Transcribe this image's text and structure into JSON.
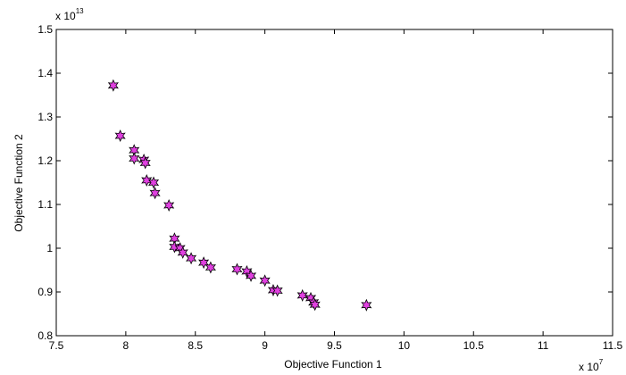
{
  "chart_data": {
    "type": "scatter",
    "title": "",
    "xlabel": "Objective Function 1",
    "ylabel": "Objective Function 2",
    "x_multiplier": {
      "base": "x 10",
      "exponent": "7"
    },
    "y_multiplier": {
      "base": "x 10",
      "exponent": "13"
    },
    "xlim": [
      7.5,
      11.5
    ],
    "ylim": [
      0.8,
      1.5
    ],
    "x_ticks": [
      "7.5",
      "8",
      "8.5",
      "9",
      "9.5",
      "10",
      "10.5",
      "11",
      "11.5"
    ],
    "y_ticks": [
      "0.8",
      "0.9",
      "1",
      "1.1",
      "1.2",
      "1.3",
      "1.4",
      "1.5"
    ],
    "grid": false,
    "marker": "hexagram",
    "colors": {
      "marker_fill": "#e040e0",
      "marker_edge": "#000000",
      "axes": "#000000"
    },
    "points": [
      [
        7.91,
        1.372
      ],
      [
        7.96,
        1.257
      ],
      [
        8.06,
        1.224
      ],
      [
        8.06,
        1.205
      ],
      [
        8.13,
        1.202
      ],
      [
        8.14,
        1.195
      ],
      [
        8.15,
        1.155
      ],
      [
        8.2,
        1.15
      ],
      [
        8.21,
        1.126
      ],
      [
        8.31,
        1.098
      ],
      [
        8.35,
        1.022
      ],
      [
        8.35,
        1.003
      ],
      [
        8.39,
        1.0
      ],
      [
        8.41,
        0.99
      ],
      [
        8.47,
        0.977
      ],
      [
        8.56,
        0.967
      ],
      [
        8.61,
        0.956
      ],
      [
        8.8,
        0.952
      ],
      [
        8.87,
        0.947
      ],
      [
        8.9,
        0.937
      ],
      [
        9.0,
        0.926
      ],
      [
        9.06,
        0.904
      ],
      [
        9.09,
        0.903
      ],
      [
        9.27,
        0.892
      ],
      [
        9.33,
        0.886
      ],
      [
        9.35,
        0.876
      ],
      [
        9.36,
        0.871
      ],
      [
        9.73,
        0.87
      ]
    ]
  }
}
